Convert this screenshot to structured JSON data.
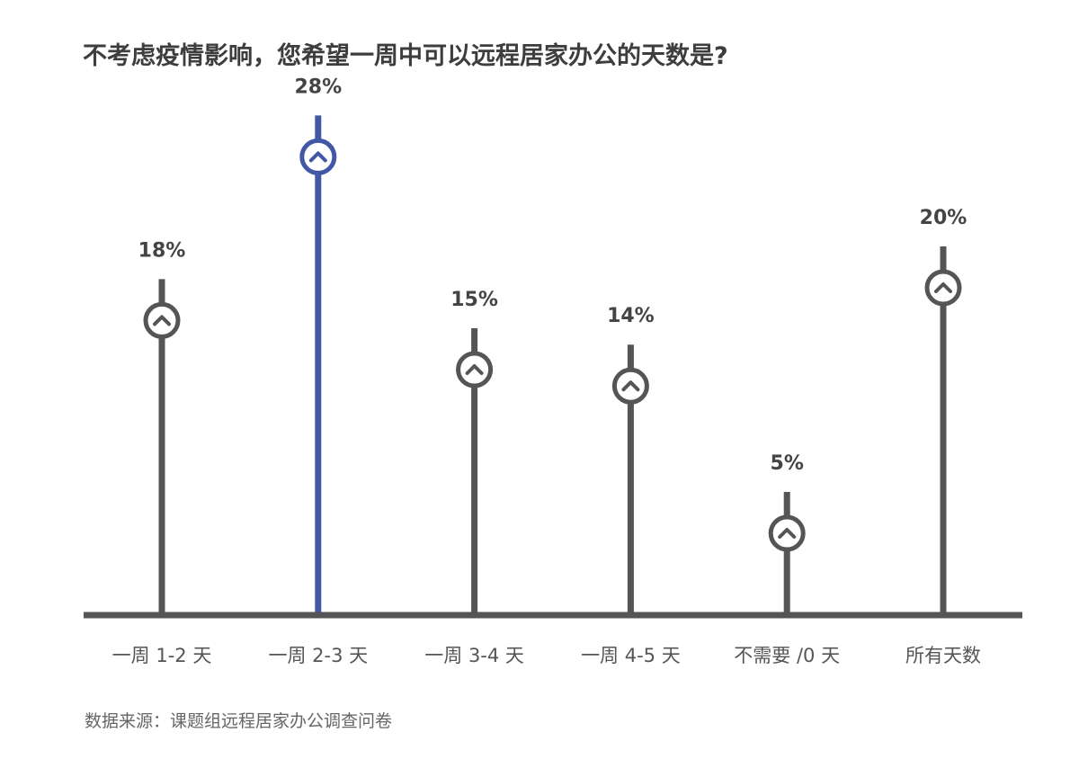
{
  "chart_data": {
    "type": "lollipop",
    "title": "不考虑疫情影响，您希望一周中可以远程居家办公的天数是?",
    "categories": [
      "一周 1-2 天",
      "一周 2-3 天",
      "一周 3-4 天",
      "一周 4-5 天",
      "不需要 /0 天",
      "所有天数"
    ],
    "values": [
      18,
      28,
      15,
      14,
      5,
      20
    ],
    "value_labels": [
      "18%",
      "28%",
      "15%",
      "14%",
      "5%",
      "20%"
    ],
    "unit": "%",
    "highlight_index": 1,
    "ylim": [
      0,
      28
    ],
    "grid": false,
    "legend": "none",
    "colors": {
      "default": "#555555",
      "highlight": "#4158a6",
      "baseline": "#555555",
      "label": "#444444",
      "axis_label": "#555555"
    },
    "marker_icon": "chevron-up-icon"
  },
  "source": "数据来源：课题组远程居家办公调查问卷"
}
